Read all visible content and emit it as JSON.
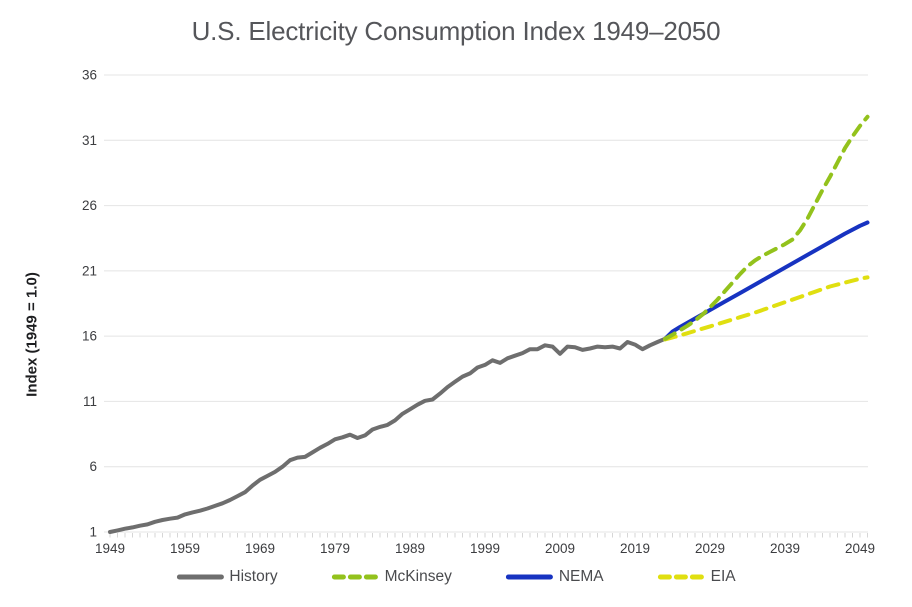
{
  "chart_data": {
    "type": "line",
    "title": "U.S. Electricity Consumption Index 1949–2050",
    "ylabel": "Index (1949 = 1.0)",
    "xlabel": "",
    "xlim": [
      1949,
      2050
    ],
    "ylim": [
      1,
      36
    ],
    "y_ticks": [
      1,
      6,
      11,
      16,
      21,
      26,
      31,
      36
    ],
    "x_ticks": [
      1949,
      1959,
      1969,
      1979,
      1989,
      1999,
      2009,
      2019,
      2029,
      2039,
      2049
    ],
    "grid": "horizontal",
    "legend_position": "bottom",
    "colors": {
      "grid": "#e4e4e4",
      "minor_tick": "#d6d6d6",
      "tick_label": "#3c3d40"
    },
    "series": [
      {
        "name": "History",
        "color": "#6e6e6e",
        "style": "solid",
        "points": [
          [
            1949,
            1.0
          ],
          [
            1950,
            1.12
          ],
          [
            1951,
            1.25
          ],
          [
            1952,
            1.35
          ],
          [
            1953,
            1.48
          ],
          [
            1954,
            1.58
          ],
          [
            1955,
            1.78
          ],
          [
            1956,
            1.92
          ],
          [
            1957,
            2.02
          ],
          [
            1958,
            2.1
          ],
          [
            1959,
            2.35
          ],
          [
            1960,
            2.5
          ],
          [
            1961,
            2.63
          ],
          [
            1962,
            2.8
          ],
          [
            1963,
            3.0
          ],
          [
            1964,
            3.2
          ],
          [
            1965,
            3.45
          ],
          [
            1966,
            3.75
          ],
          [
            1967,
            4.05
          ],
          [
            1968,
            4.55
          ],
          [
            1969,
            5.0
          ],
          [
            1970,
            5.3
          ],
          [
            1971,
            5.6
          ],
          [
            1972,
            6.0
          ],
          [
            1973,
            6.5
          ],
          [
            1974,
            6.7
          ],
          [
            1975,
            6.75
          ],
          [
            1976,
            7.1
          ],
          [
            1977,
            7.45
          ],
          [
            1978,
            7.75
          ],
          [
            1979,
            8.1
          ],
          [
            1980,
            8.25
          ],
          [
            1981,
            8.45
          ],
          [
            1982,
            8.2
          ],
          [
            1983,
            8.4
          ],
          [
            1984,
            8.85
          ],
          [
            1985,
            9.05
          ],
          [
            1986,
            9.2
          ],
          [
            1987,
            9.55
          ],
          [
            1988,
            10.05
          ],
          [
            1989,
            10.4
          ],
          [
            1990,
            10.75
          ],
          [
            1991,
            11.05
          ],
          [
            1992,
            11.15
          ],
          [
            1993,
            11.6
          ],
          [
            1994,
            12.1
          ],
          [
            1995,
            12.5
          ],
          [
            1996,
            12.9
          ],
          [
            1997,
            13.15
          ],
          [
            1998,
            13.6
          ],
          [
            1999,
            13.8
          ],
          [
            2000,
            14.15
          ],
          [
            2001,
            13.95
          ],
          [
            2002,
            14.3
          ],
          [
            2003,
            14.5
          ],
          [
            2004,
            14.7
          ],
          [
            2005,
            15.0
          ],
          [
            2006,
            15.0
          ],
          [
            2007,
            15.3
          ],
          [
            2008,
            15.2
          ],
          [
            2009,
            14.65
          ],
          [
            2010,
            15.2
          ],
          [
            2011,
            15.15
          ],
          [
            2012,
            14.95
          ],
          [
            2013,
            15.05
          ],
          [
            2014,
            15.2
          ],
          [
            2015,
            15.15
          ],
          [
            2016,
            15.2
          ],
          [
            2017,
            15.05
          ],
          [
            2018,
            15.55
          ],
          [
            2019,
            15.35
          ],
          [
            2020,
            15.0
          ],
          [
            2021,
            15.3
          ],
          [
            2022,
            15.55
          ],
          [
            2023,
            15.8
          ]
        ]
      },
      {
        "name": "McKinsey",
        "color": "#93c21c",
        "style": "dashed",
        "points": [
          [
            2023,
            15.8
          ],
          [
            2024,
            16.1
          ],
          [
            2025,
            16.45
          ],
          [
            2026,
            16.8
          ],
          [
            2027,
            17.2
          ],
          [
            2028,
            17.65
          ],
          [
            2029,
            18.2
          ],
          [
            2030,
            18.8
          ],
          [
            2031,
            19.45
          ],
          [
            2032,
            20.1
          ],
          [
            2033,
            20.75
          ],
          [
            2034,
            21.35
          ],
          [
            2035,
            21.8
          ],
          [
            2036,
            22.15
          ],
          [
            2037,
            22.45
          ],
          [
            2038,
            22.75
          ],
          [
            2039,
            23.05
          ],
          [
            2040,
            23.4
          ],
          [
            2041,
            24.1
          ],
          [
            2042,
            25.0
          ],
          [
            2043,
            26.1
          ],
          [
            2044,
            27.2
          ],
          [
            2045,
            28.2
          ],
          [
            2046,
            29.3
          ],
          [
            2047,
            30.4
          ],
          [
            2048,
            31.3
          ],
          [
            2049,
            32.1
          ],
          [
            2050,
            32.8
          ]
        ]
      },
      {
        "name": "NEMA",
        "color": "#1733c1",
        "style": "solid",
        "points": [
          [
            2023,
            15.8
          ],
          [
            2024,
            16.35
          ],
          [
            2025,
            16.7
          ],
          [
            2027,
            17.35
          ],
          [
            2029,
            18.0
          ],
          [
            2031,
            18.65
          ],
          [
            2033,
            19.3
          ],
          [
            2035,
            19.95
          ],
          [
            2037,
            20.6
          ],
          [
            2039,
            21.25
          ],
          [
            2041,
            21.9
          ],
          [
            2043,
            22.55
          ],
          [
            2045,
            23.2
          ],
          [
            2047,
            23.85
          ],
          [
            2049,
            24.45
          ],
          [
            2050,
            24.7
          ]
        ]
      },
      {
        "name": "EIA",
        "color": "#e0df10",
        "style": "dashed",
        "points": [
          [
            2023,
            15.75
          ],
          [
            2024,
            15.9
          ],
          [
            2025,
            16.05
          ],
          [
            2027,
            16.4
          ],
          [
            2029,
            16.75
          ],
          [
            2031,
            17.1
          ],
          [
            2033,
            17.45
          ],
          [
            2035,
            17.8
          ],
          [
            2037,
            18.2
          ],
          [
            2039,
            18.6
          ],
          [
            2041,
            19.0
          ],
          [
            2043,
            19.4
          ],
          [
            2045,
            19.8
          ],
          [
            2047,
            20.1
          ],
          [
            2049,
            20.4
          ],
          [
            2050,
            20.5
          ]
        ]
      }
    ]
  }
}
